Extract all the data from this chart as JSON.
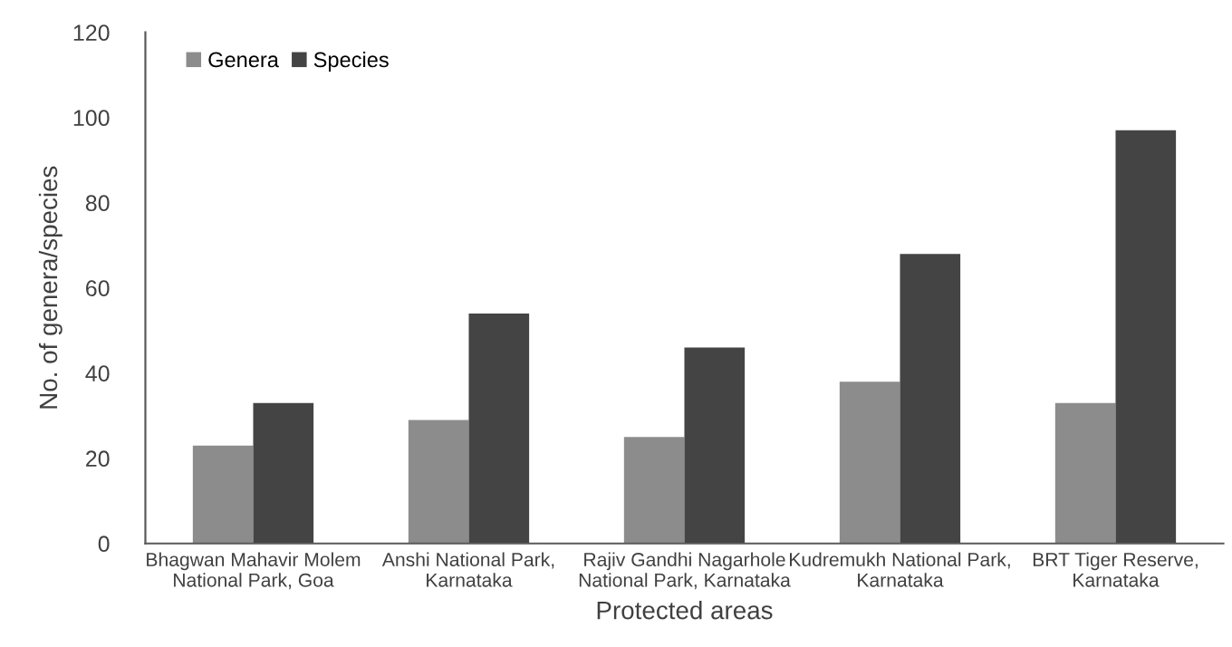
{
  "chart_data": {
    "type": "bar",
    "xlabel": "Protected areas",
    "ylabel": "No. of genera/species",
    "categories": [
      "Bhagwan Mahavir Molem\nNational Park, Goa",
      "Anshi National Park,\nKarnataka",
      "Rajiv Gandhi Nagarhole\nNational Park, Karnataka",
      "Kudremukh National Park,\nKarnataka",
      "BRT Tiger Reserve,\nKarnataka"
    ],
    "series": [
      {
        "name": "Genera",
        "color": "#8c8c8c",
        "values": [
          23,
          29,
          25,
          38,
          33
        ]
      },
      {
        "name": "Species",
        "color": "#444444",
        "values": [
          33,
          54,
          46,
          68,
          97
        ]
      }
    ],
    "ylim": [
      0,
      120
    ],
    "yticks": [
      0,
      20,
      40,
      60,
      80,
      100,
      120
    ],
    "grid": false,
    "legend": "top left"
  }
}
